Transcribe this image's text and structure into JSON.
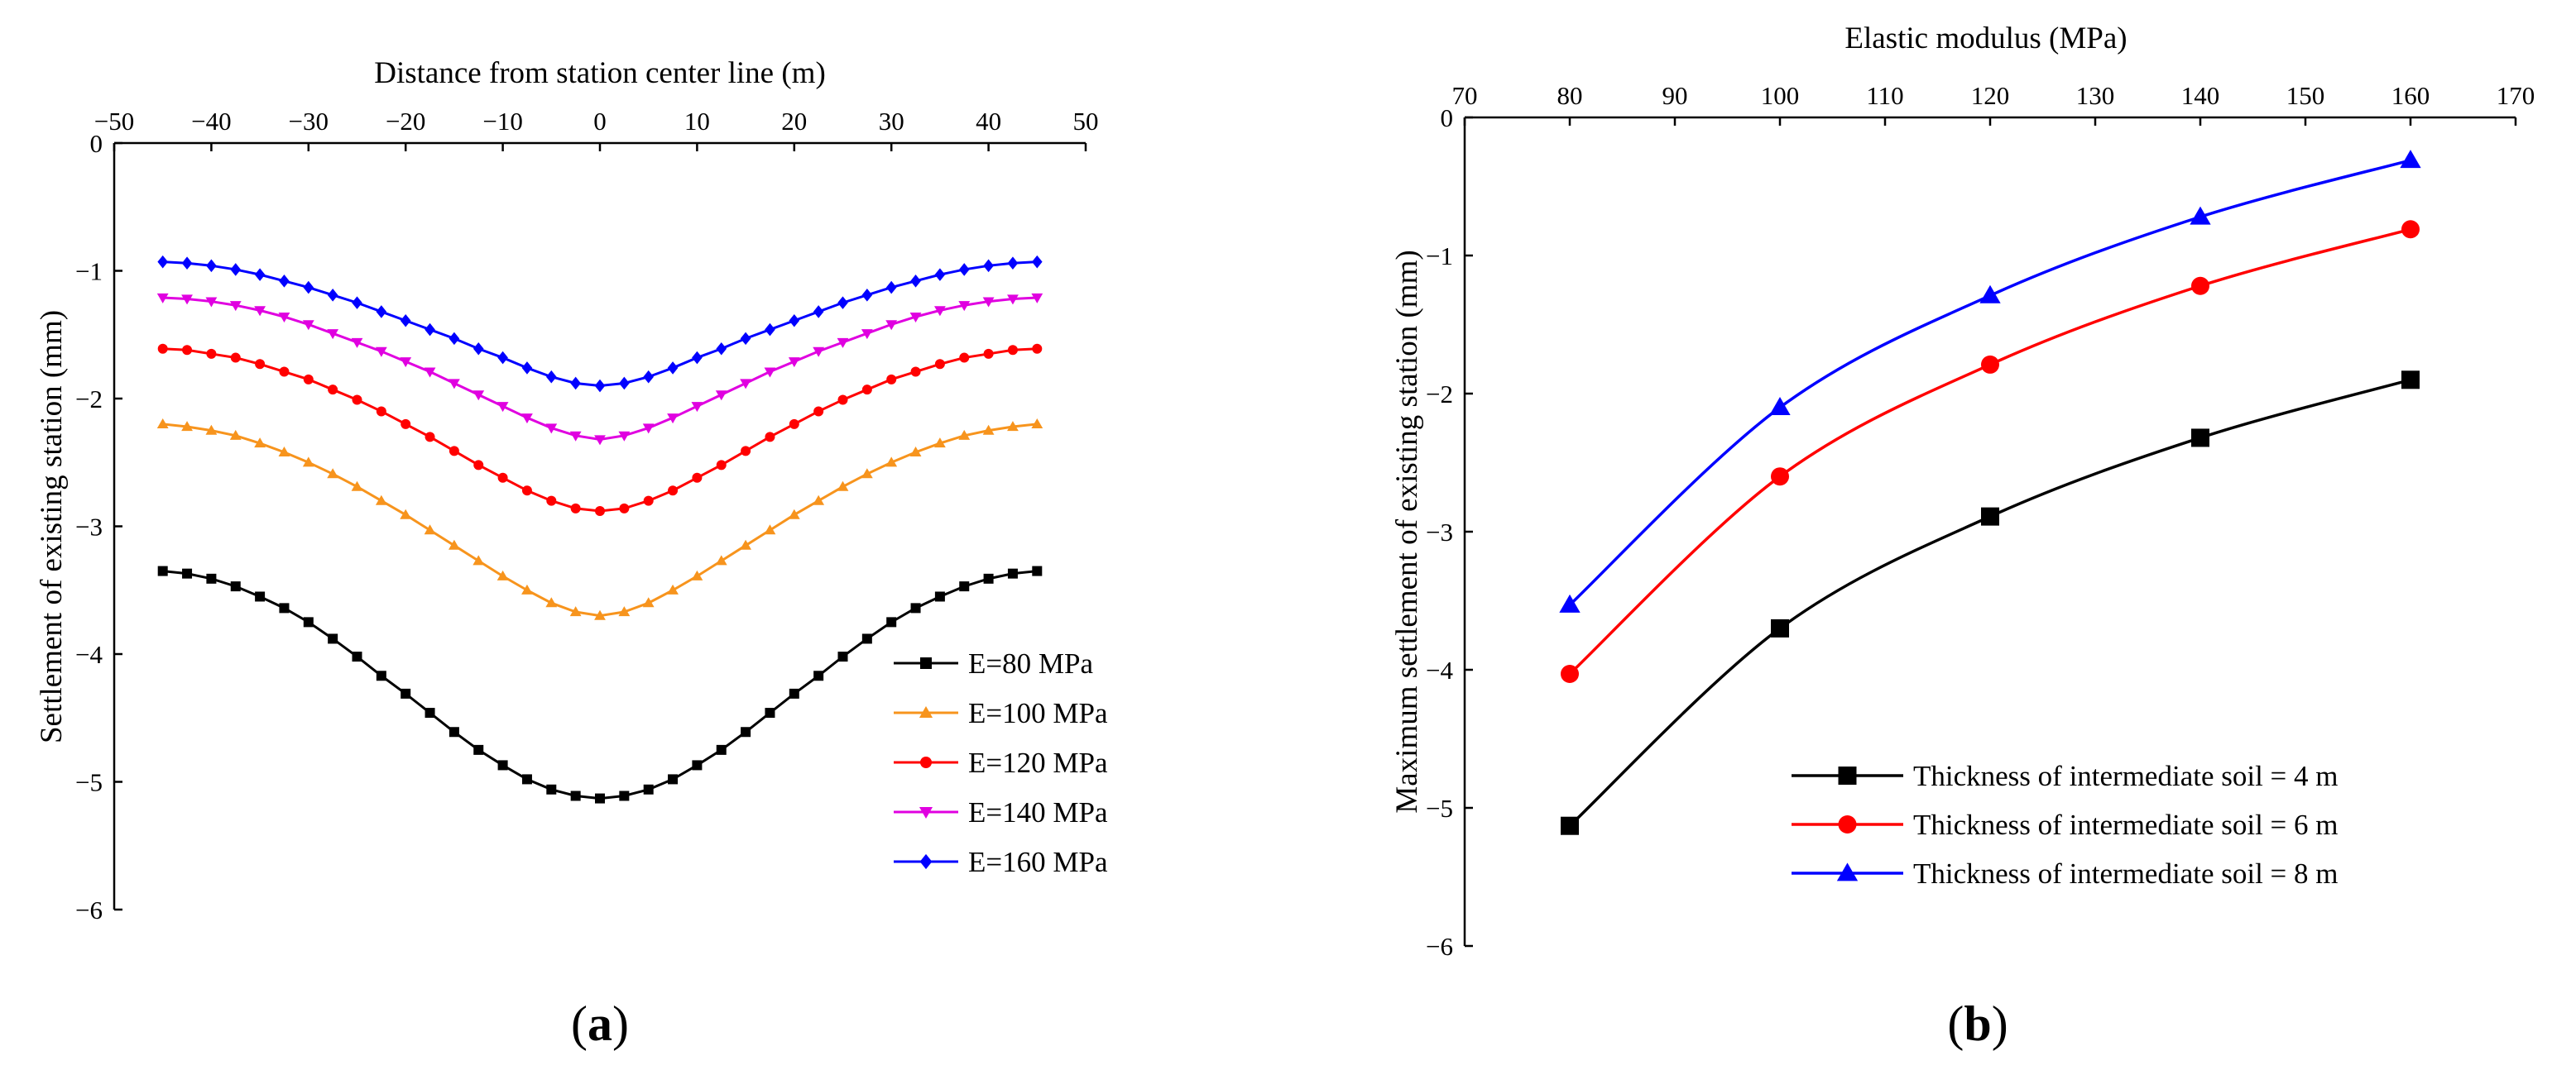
{
  "panels": [
    {
      "label_open": "(",
      "label_letter": "a",
      "label_close": ")"
    },
    {
      "label_open": "(",
      "label_letter": "b",
      "label_close": ")"
    }
  ],
  "chart_data": [
    {
      "type": "line",
      "title": "",
      "xlabel": "Distance from station center line (m)",
      "ylabel": "Settlement of existing station (mm)",
      "xlim": [
        -50,
        50
      ],
      "ylim": [
        -6,
        0
      ],
      "xticks": [
        -50,
        -40,
        -30,
        -20,
        -10,
        0,
        10,
        20,
        30,
        40,
        50
      ],
      "yticks": [
        0,
        -1,
        -2,
        -3,
        -4,
        -5,
        -6
      ],
      "x_axis_position": "top",
      "legend_position": "lower-right",
      "x": [
        -45,
        -42.5,
        -40,
        -37.5,
        -35,
        -32.5,
        -30,
        -27.5,
        -25,
        -22.5,
        -20,
        -17.5,
        -15,
        -12.5,
        -10,
        -7.5,
        -5,
        -2.5,
        0,
        2.5,
        5,
        7.5,
        10,
        12.5,
        15,
        17.5,
        20,
        22.5,
        25,
        27.5,
        30,
        32.5,
        35,
        37.5,
        40,
        42.5,
        45
      ],
      "series": [
        {
          "name": "E=80 MPa",
          "color": "#000000",
          "marker": "square",
          "values": [
            -3.35,
            -3.37,
            -3.41,
            -3.47,
            -3.55,
            -3.64,
            -3.75,
            -3.88,
            -4.02,
            -4.17,
            -4.31,
            -4.46,
            -4.61,
            -4.75,
            -4.87,
            -4.98,
            -5.06,
            -5.11,
            -5.13,
            -5.11,
            -5.06,
            -4.98,
            -4.87,
            -4.75,
            -4.61,
            -4.46,
            -4.31,
            -4.17,
            -4.02,
            -3.88,
            -3.75,
            -3.64,
            -3.55,
            -3.47,
            -3.41,
            -3.37,
            -3.35
          ]
        },
        {
          "name": "E=100 MPa",
          "color": "#f7941d",
          "marker": "triangle-up",
          "values": [
            -2.2,
            -2.22,
            -2.25,
            -2.29,
            -2.35,
            -2.42,
            -2.5,
            -2.59,
            -2.69,
            -2.8,
            -2.91,
            -3.03,
            -3.15,
            -3.27,
            -3.39,
            -3.5,
            -3.6,
            -3.67,
            -3.7,
            -3.67,
            -3.6,
            -3.5,
            -3.39,
            -3.27,
            -3.15,
            -3.03,
            -2.91,
            -2.8,
            -2.69,
            -2.59,
            -2.5,
            -2.42,
            -2.35,
            -2.29,
            -2.25,
            -2.22,
            -2.2
          ]
        },
        {
          "name": "E=120 MPa",
          "color": "#ff0000",
          "marker": "circle",
          "values": [
            -1.61,
            -1.62,
            -1.65,
            -1.68,
            -1.73,
            -1.79,
            -1.85,
            -1.93,
            -2.01,
            -2.1,
            -2.2,
            -2.3,
            -2.41,
            -2.52,
            -2.62,
            -2.72,
            -2.8,
            -2.86,
            -2.88,
            -2.86,
            -2.8,
            -2.72,
            -2.62,
            -2.52,
            -2.41,
            -2.3,
            -2.2,
            -2.1,
            -2.01,
            -1.93,
            -1.85,
            -1.79,
            -1.73,
            -1.68,
            -1.65,
            -1.62,
            -1.61
          ]
        },
        {
          "name": "E=140 MPa",
          "color": "#e000e0",
          "marker": "triangle-down",
          "values": [
            -1.21,
            -1.22,
            -1.24,
            -1.27,
            -1.31,
            -1.36,
            -1.42,
            -1.49,
            -1.56,
            -1.63,
            -1.71,
            -1.79,
            -1.88,
            -1.97,
            -2.06,
            -2.15,
            -2.23,
            -2.29,
            -2.32,
            -2.29,
            -2.23,
            -2.15,
            -2.06,
            -1.97,
            -1.88,
            -1.79,
            -1.71,
            -1.63,
            -1.56,
            -1.49,
            -1.42,
            -1.36,
            -1.31,
            -1.27,
            -1.24,
            -1.22,
            -1.21
          ]
        },
        {
          "name": "E=160 MPa",
          "color": "#0000ff",
          "marker": "diamond",
          "values": [
            -0.93,
            -0.94,
            -0.96,
            -0.99,
            -1.03,
            -1.08,
            -1.13,
            -1.19,
            -1.25,
            -1.32,
            -1.39,
            -1.46,
            -1.53,
            -1.61,
            -1.68,
            -1.76,
            -1.83,
            -1.88,
            -1.9,
            -1.88,
            -1.83,
            -1.76,
            -1.68,
            -1.61,
            -1.53,
            -1.46,
            -1.39,
            -1.32,
            -1.25,
            -1.19,
            -1.13,
            -1.08,
            -1.03,
            -0.99,
            -0.96,
            -0.94,
            -0.93
          ]
        }
      ]
    },
    {
      "type": "line",
      "title": "",
      "xlabel": "Elastic modulus (MPa)",
      "ylabel": "Maximum settlement of existing station (mm)",
      "xlim": [
        70,
        170
      ],
      "ylim": [
        -6,
        0
      ],
      "xticks": [
        70,
        80,
        90,
        100,
        110,
        120,
        130,
        140,
        150,
        160,
        170
      ],
      "yticks": [
        0,
        -1,
        -2,
        -3,
        -4,
        -5,
        -6
      ],
      "x_axis_position": "top",
      "legend_position": "lower-right",
      "x": [
        80,
        100,
        120,
        140,
        160
      ],
      "series": [
        {
          "name": "Thickness of intermediate soil = 4 m",
          "color": "#000000",
          "marker": "square",
          "values": [
            -5.13,
            -3.7,
            -2.89,
            -2.32,
            -1.9
          ]
        },
        {
          "name": "Thickness of intermediate soil = 6 m",
          "color": "#ff0000",
          "marker": "circle",
          "values": [
            -4.03,
            -2.6,
            -1.79,
            -1.22,
            -0.81
          ]
        },
        {
          "name": "Thickness of intermediate soil = 8 m",
          "color": "#0000ff",
          "marker": "triangle-up",
          "values": [
            -3.53,
            -2.1,
            -1.29,
            -0.72,
            -0.31
          ]
        }
      ]
    }
  ]
}
